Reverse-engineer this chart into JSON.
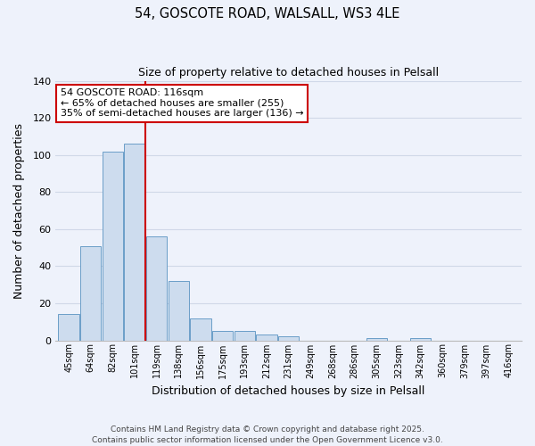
{
  "title": "54, GOSCOTE ROAD, WALSALL, WS3 4LE",
  "subtitle": "Size of property relative to detached houses in Pelsall",
  "xlabel": "Distribution of detached houses by size in Pelsall",
  "ylabel": "Number of detached properties",
  "bar_values": [
    14,
    51,
    102,
    106,
    56,
    32,
    12,
    5,
    5,
    3,
    2,
    0,
    0,
    0,
    1,
    0,
    1,
    0,
    0,
    0,
    0
  ],
  "bar_labels": [
    "45sqm",
    "64sqm",
    "82sqm",
    "101sqm",
    "119sqm",
    "138sqm",
    "156sqm",
    "175sqm",
    "193sqm",
    "212sqm",
    "231sqm",
    "249sqm",
    "268sqm",
    "286sqm",
    "305sqm",
    "323sqm",
    "342sqm",
    "360sqm",
    "379sqm",
    "397sqm",
    "416sqm"
  ],
  "bar_color": "#cddcee",
  "bar_edge_color": "#6b9ec8",
  "vline_color": "#cc0000",
  "ylim": [
    0,
    140
  ],
  "yticks": [
    0,
    20,
    40,
    60,
    80,
    100,
    120,
    140
  ],
  "annotation_title": "54 GOSCOTE ROAD: 116sqm",
  "annotation_line1": "← 65% of detached houses are smaller (255)",
  "annotation_line2": "35% of semi-detached houses are larger (136) →",
  "annotation_box_color": "#ffffff",
  "annotation_box_edge": "#cc0000",
  "footer_line1": "Contains HM Land Registry data © Crown copyright and database right 2025.",
  "footer_line2": "Contains public sector information licensed under the Open Government Licence v3.0.",
  "background_color": "#eef2fb",
  "grid_color": "#d0d8e8"
}
